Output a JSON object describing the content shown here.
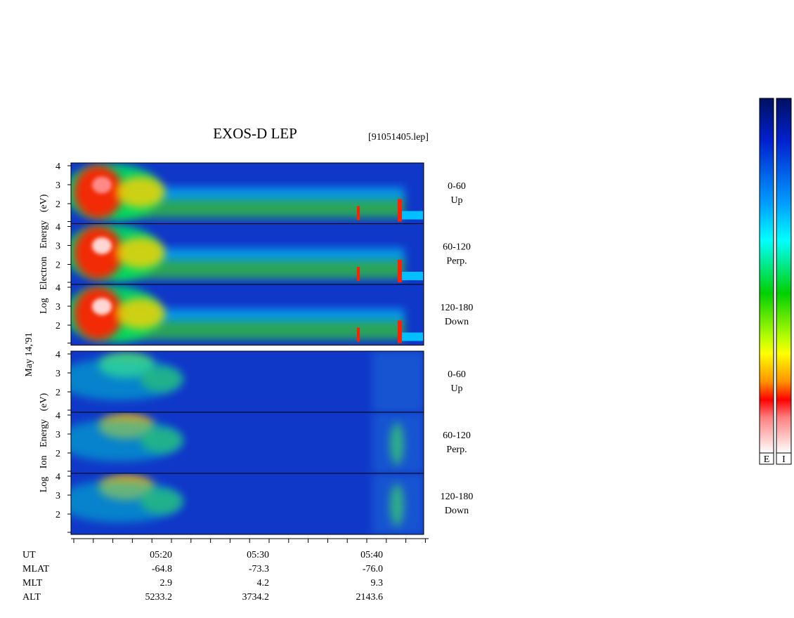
{
  "title": "EXOS-D LEP",
  "file": "[91051405.lep]",
  "date_label": "May 14,'91",
  "groups": [
    {
      "ylabel": "Log Electron Energy (eV)",
      "panels": [
        {
          "angle": "0-60",
          "direction": "Up"
        },
        {
          "angle": "60-120",
          "direction": "Perp."
        },
        {
          "angle": "120-180",
          "direction": "Down"
        }
      ]
    },
    {
      "ylabel": "Log Ion Energy (eV)",
      "panels": [
        {
          "angle": "0-60",
          "direction": "Up"
        },
        {
          "angle": "60-120",
          "direction": "Perp."
        },
        {
          "angle": "120-180",
          "direction": "Down"
        }
      ]
    }
  ],
  "yticks": [
    "2",
    "3",
    "4"
  ],
  "ephemeris": {
    "row_labels": [
      "UT",
      "MLAT",
      "MLT",
      "ALT"
    ],
    "columns": [
      [
        "05:20",
        "-64.8",
        "2.9",
        "5233.2"
      ],
      [
        "05:30",
        "-73.3",
        "4.2",
        "3734.2"
      ],
      [
        "05:40",
        "-76.0",
        "9.3",
        "2143.6"
      ]
    ]
  },
  "colorbar_labels": [
    "E",
    "I"
  ]
}
